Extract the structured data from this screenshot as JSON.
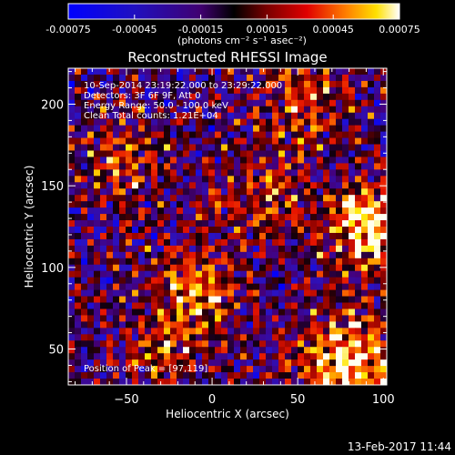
{
  "colorbar": {
    "tick_labels": [
      "-0.00075",
      "-0.00045",
      "-0.00015",
      "0.00015",
      "0.00045",
      "0.00075"
    ],
    "tick_values": [
      -0.00075,
      -0.00045,
      -0.00015,
      0.00015,
      0.00045,
      0.00075
    ],
    "unit_label": "(photons cm⁻² s⁻¹ asec⁻²)"
  },
  "plot": {
    "title": "Reconstructed RHESSI Image",
    "xlabel": "Heliocentric X (arcsec)",
    "ylabel": "Heliocentric Y (arcsec)",
    "xlim": [
      -84,
      102
    ],
    "ylim": [
      28,
      222
    ],
    "x_ticks": [
      -50,
      0,
      50,
      100
    ],
    "y_ticks": [
      50,
      100,
      150,
      200
    ],
    "x_tick_labels": [
      "−50",
      "0",
      "50",
      "100"
    ],
    "y_tick_labels": [
      "50",
      "100",
      "150",
      "200"
    ],
    "info_lines": [
      "10-Sep-2014 23:19:22.000 to 23:29:22.000",
      "Detectors: 3F 6F 9F, Att 0",
      "Energy Range: 50.0 - 100.0 keV",
      "Clean     Total counts: 1.21E+04"
    ],
    "peak_label": "Position of Peak = [97,119]"
  },
  "footer": {
    "timestamp": "13-Feb-2017 11:44"
  }
}
